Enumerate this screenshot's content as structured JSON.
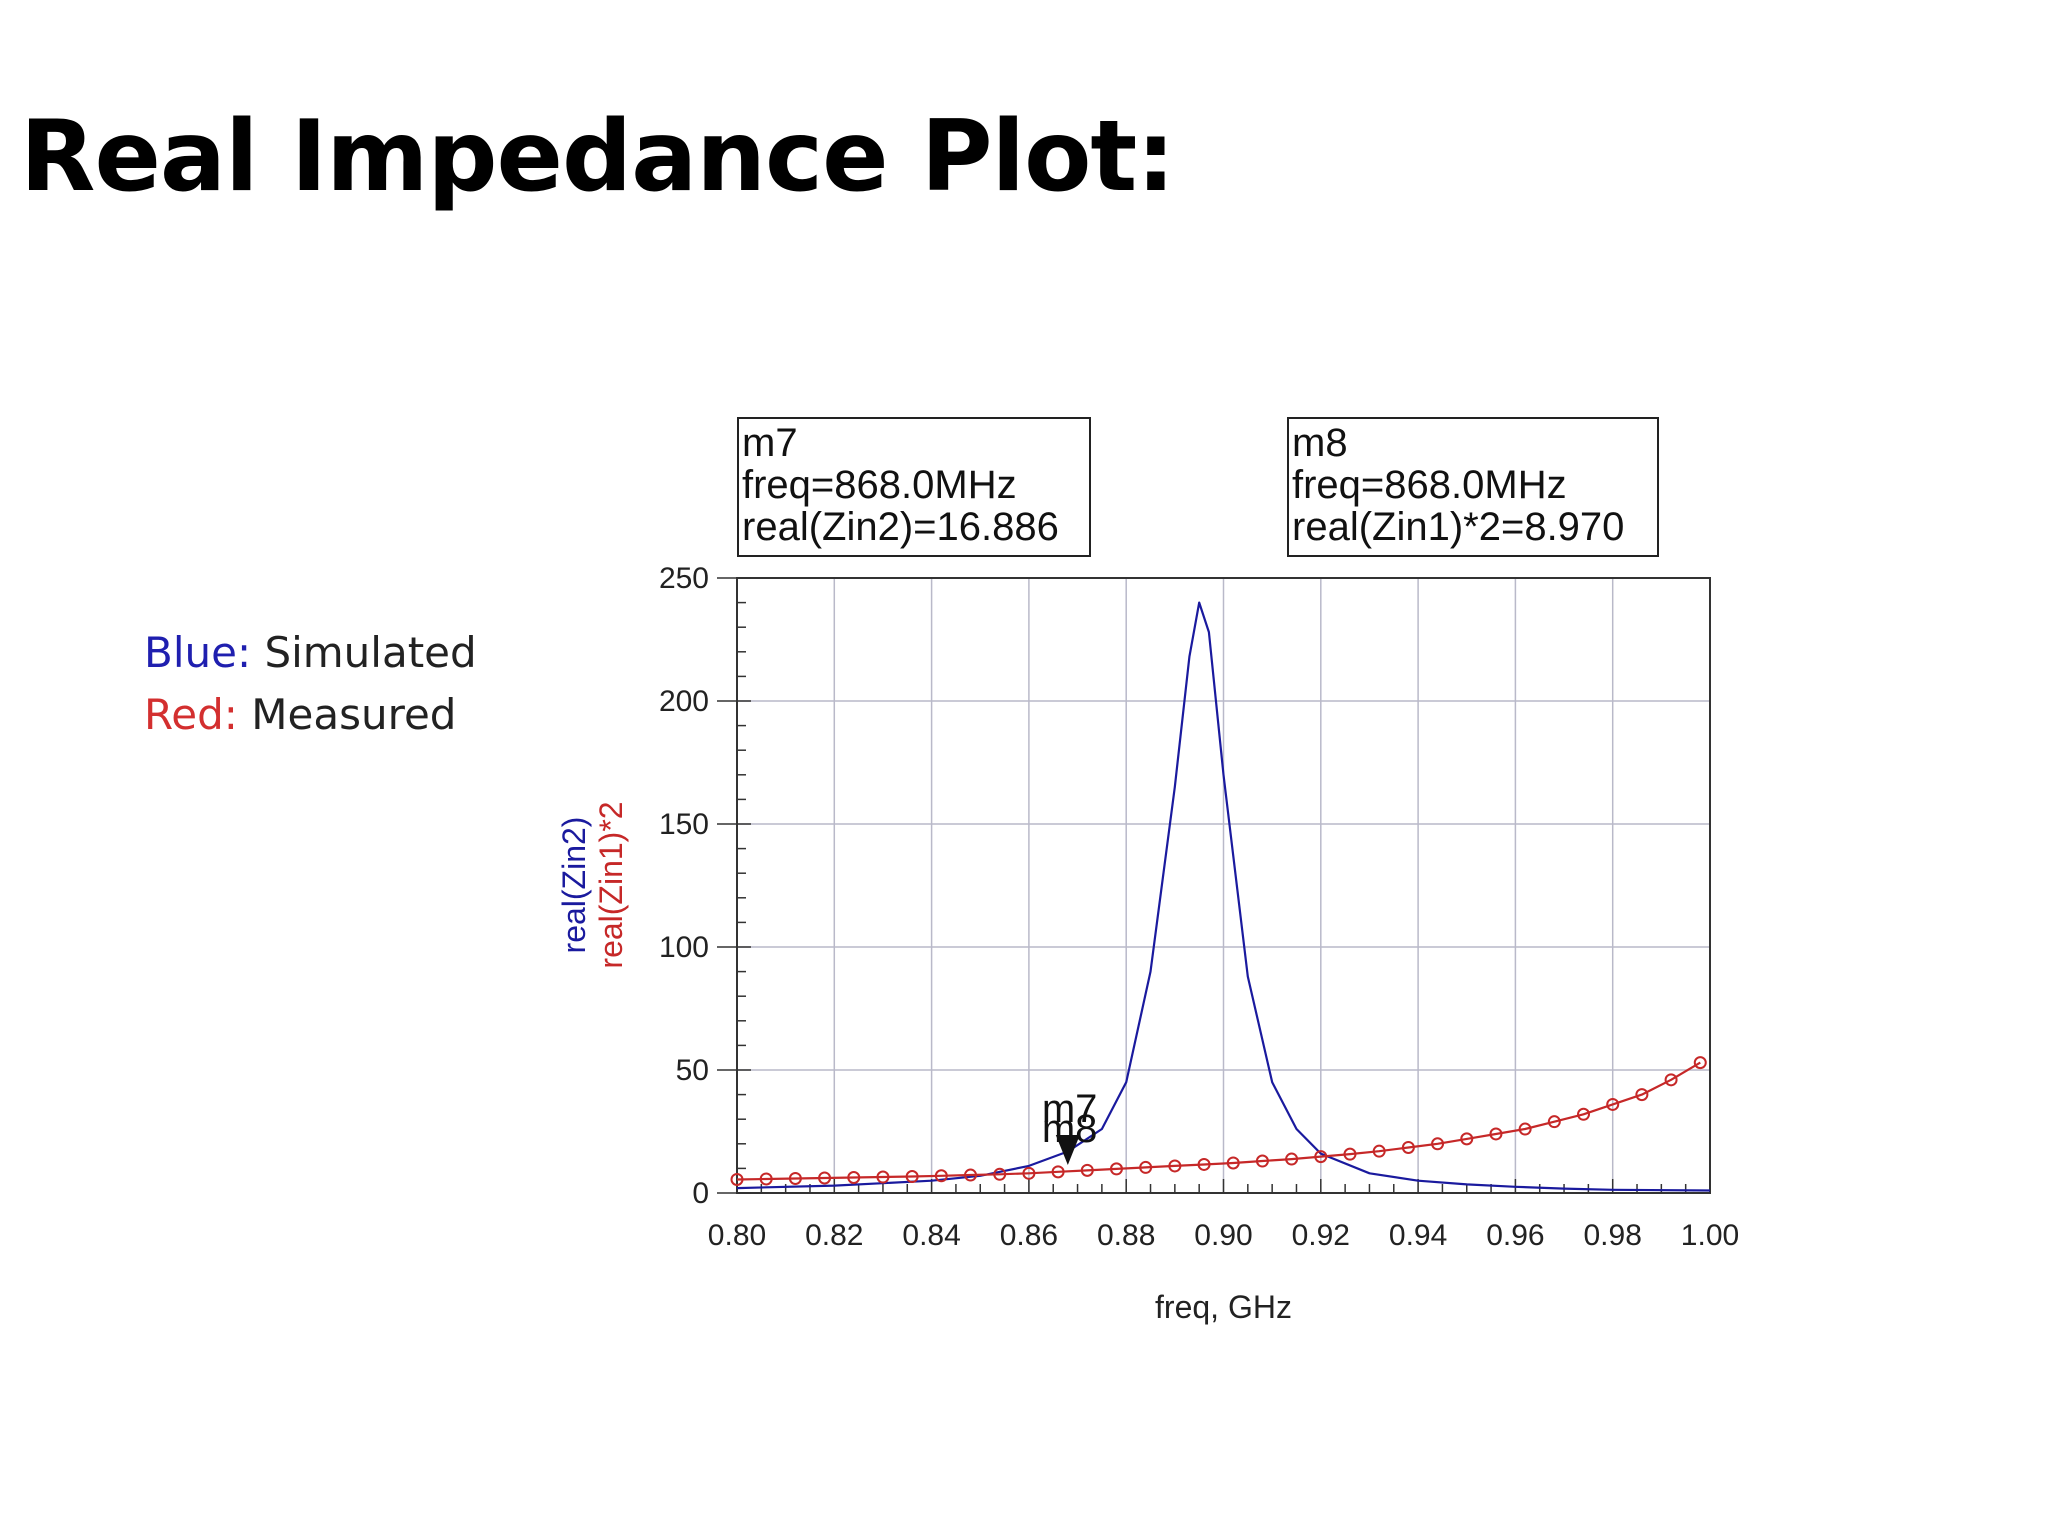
{
  "slide": {
    "title": "Real Impedance Plot:",
    "legend_note": [
      {
        "label": "Blue:",
        "text": " Simulated",
        "color": "#1f1faf"
      },
      {
        "label": "Red:",
        "text": " Measured",
        "color": "#d32f2f"
      }
    ]
  },
  "chart_data": {
    "type": "line",
    "xlabel": "freq, GHz",
    "ylabels": [
      {
        "text": "real(Zin2)",
        "color": "#1a1a9e"
      },
      {
        "text": "real(Zin1)*2",
        "color": "#c62828"
      }
    ],
    "xlim": [
      0.8,
      1.0
    ],
    "ylim": [
      0,
      250
    ],
    "x_ticks": [
      "0.80",
      "0.82",
      "0.84",
      "0.86",
      "0.88",
      "0.90",
      "0.92",
      "0.94",
      "0.96",
      "0.98",
      "1.00"
    ],
    "y_ticks": [
      "0",
      "50",
      "100",
      "150",
      "200",
      "250"
    ],
    "grid": true,
    "series": [
      {
        "key": "sim",
        "color": "#1a1a9e",
        "marker": "none",
        "x": [
          0.8,
          0.82,
          0.84,
          0.85,
          0.86,
          0.868,
          0.875,
          0.88,
          0.885,
          0.89,
          0.893,
          0.895,
          0.897,
          0.9,
          0.905,
          0.91,
          0.915,
          0.92,
          0.93,
          0.94,
          0.95,
          0.96,
          0.97,
          0.98,
          1.0
        ],
        "y": [
          2,
          3,
          5,
          7,
          11,
          16.886,
          26,
          45,
          90,
          165,
          218,
          240,
          228,
          170,
          88,
          45,
          26,
          16,
          8,
          5,
          3.5,
          2.5,
          1.8,
          1.3,
          1
        ]
      },
      {
        "key": "meas",
        "color": "#c62828",
        "marker": "circle",
        "x": [
          0.8,
          0.806,
          0.812,
          0.818,
          0.824,
          0.83,
          0.836,
          0.842,
          0.848,
          0.854,
          0.86,
          0.866,
          0.872,
          0.878,
          0.884,
          0.89,
          0.896,
          0.902,
          0.908,
          0.914,
          0.92,
          0.926,
          0.932,
          0.938,
          0.944,
          0.95,
          0.956,
          0.962,
          0.968,
          0.974,
          0.98,
          0.986,
          0.992,
          0.998
        ],
        "y": [
          5.5,
          5.7,
          5.9,
          6.1,
          6.3,
          6.5,
          6.7,
          7.0,
          7.3,
          7.6,
          8.0,
          8.6,
          9.2,
          9.8,
          10.4,
          11.0,
          11.6,
          12.2,
          13.0,
          13.8,
          14.8,
          15.8,
          17.0,
          18.5,
          20,
          22,
          24,
          26,
          29,
          32,
          36,
          40,
          46,
          53
        ]
      }
    ],
    "markers": [
      {
        "name": "m7",
        "x": 0.868,
        "lines": [
          "m7",
          "freq=868.0MHz",
          "real(Zin2)=16.886"
        ]
      },
      {
        "name": "m8",
        "x": 0.868,
        "lines": [
          "m8",
          "freq=868.0MHz",
          "real(Zin1)*2=8.970"
        ]
      }
    ]
  }
}
